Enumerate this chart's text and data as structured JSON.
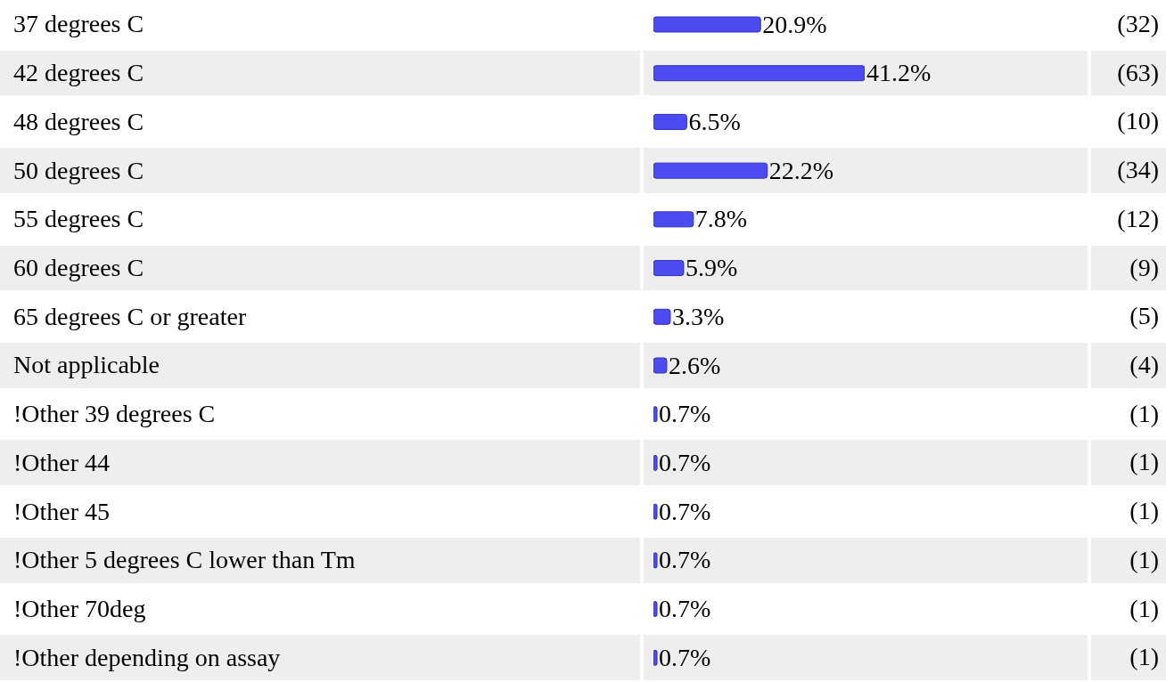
{
  "chart_data": {
    "type": "bar",
    "orientation": "horizontal",
    "categories": [
      "37 degrees C",
      "42 degrees C",
      "48 degrees C",
      "50 degrees C",
      "55 degrees C",
      "60 degrees C",
      "65 degrees C or greater",
      "Not applicable",
      "!Other 39 degrees C",
      "!Other 44",
      "!Other 45",
      "!Other 5 degrees C lower than Tm",
      "!Other 70deg",
      "!Other depending on assay"
    ],
    "values": [
      20.9,
      41.2,
      6.5,
      22.2,
      7.8,
      5.9,
      3.3,
      2.6,
      0.7,
      0.7,
      0.7,
      0.7,
      0.7,
      0.7
    ],
    "color": "#4b4bf0",
    "value_labels": [
      "20.9%",
      "41.2%",
      "6.5%",
      "22.2%",
      "7.8%",
      "5.9%",
      "3.3%",
      "2.6%",
      "0.7%",
      "0.7%",
      "0.7%",
      "0.7%",
      "0.7%",
      "0.7%"
    ],
    "annotations": [
      "(32)",
      "(63)",
      "(10)",
      "(34)",
      "(12)",
      "(9)",
      "(5)",
      "(4)",
      "(1)",
      "(1)",
      "(1)",
      "(1)",
      "(1)",
      "(1)"
    ]
  }
}
